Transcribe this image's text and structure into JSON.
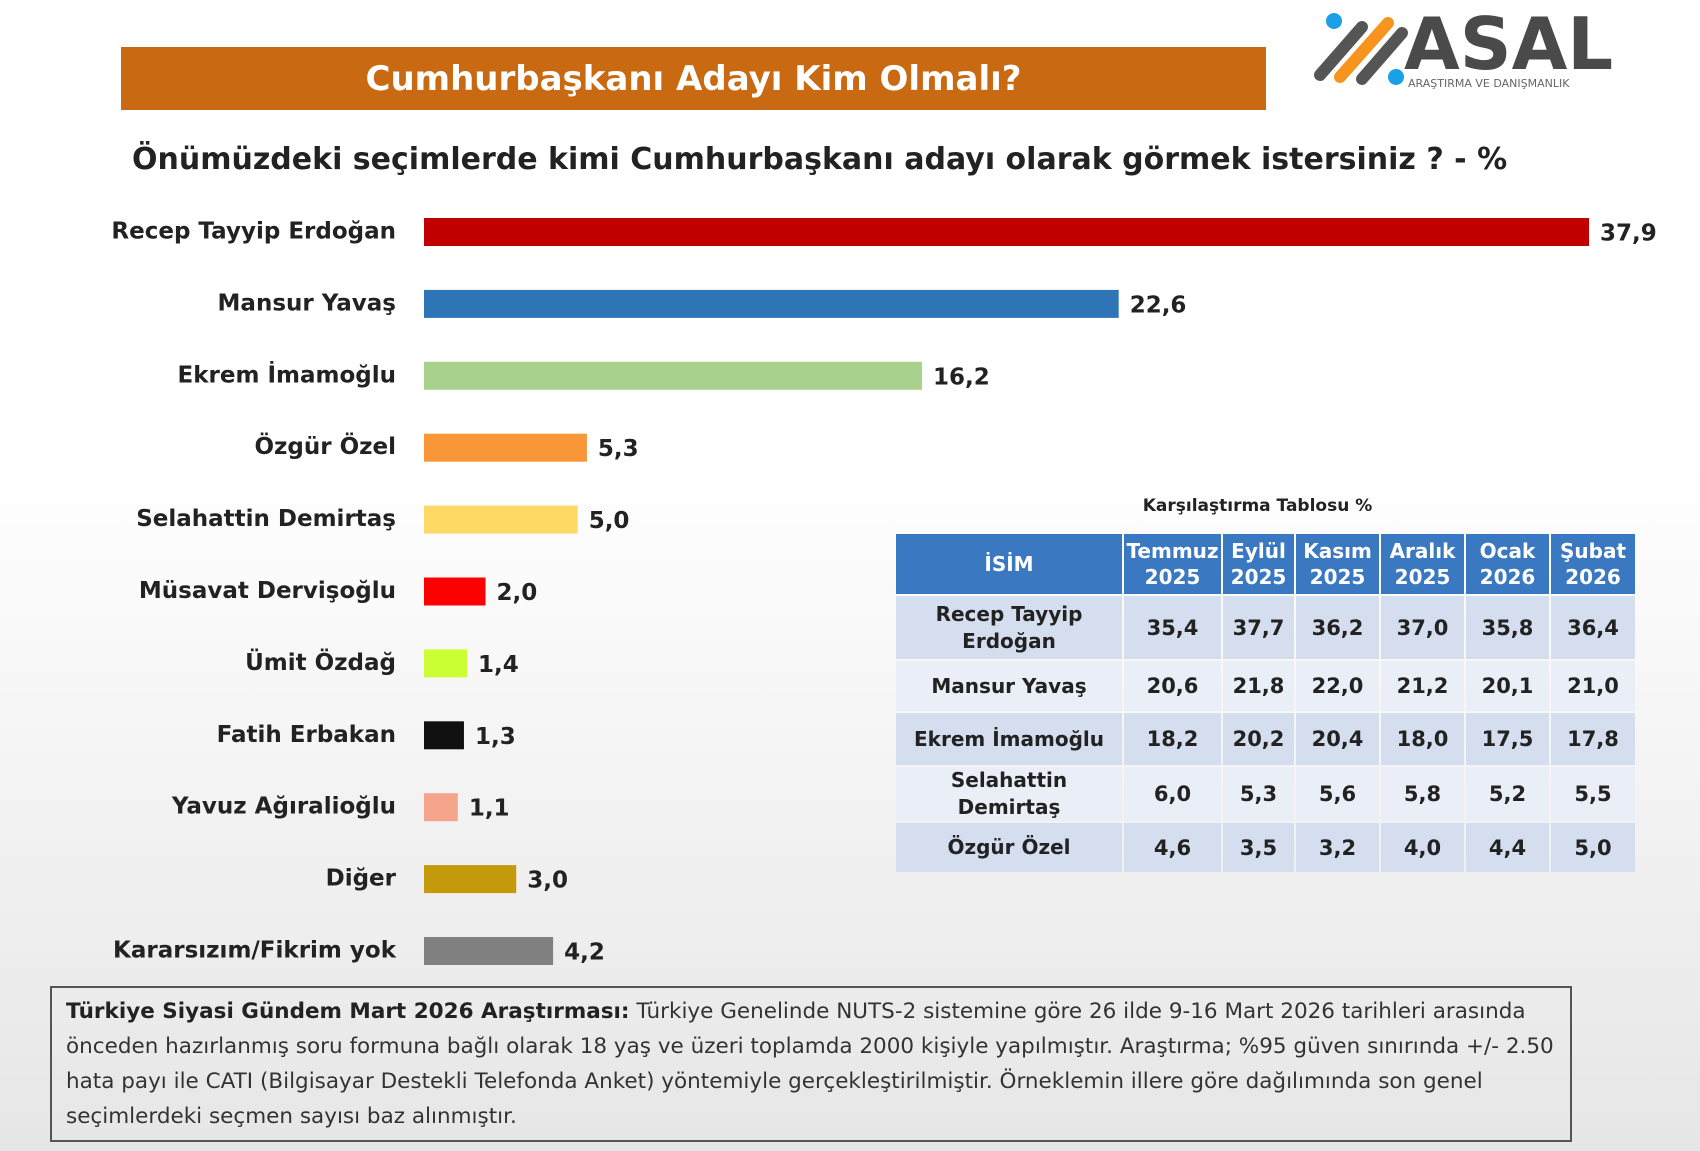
{
  "header": {
    "title": "Cumhurbaşkanı Adayı Kim Olmalı?",
    "logo": "ASAL",
    "logo_tagline": "ARAŞTIRMA VE DANIŞMANLIK"
  },
  "chart_data": {
    "type": "barh",
    "title": "Önümüzdeki seçimlerde kimi Cumhurbaşkanı adayı olarak görmek istersiniz ? - %",
    "categories": [
      "Recep Tayyip Erdoğan",
      "Mansur Yavaş",
      "Ekrem İmamoğlu",
      "Özgür Özel",
      "Selahattin Demirtaş",
      "Müsavat Dervişoğlu",
      "Ümit Özdağ",
      "Fatih Erbakan",
      "Yavuz Ağıralioğlu",
      "Diğer",
      "Kararsızım/Fikrim yok"
    ],
    "values": [
      37.9,
      22.6,
      16.2,
      5.3,
      5.0,
      2.0,
      1.4,
      1.3,
      1.1,
      3.0,
      4.2
    ],
    "value_labels": [
      "37,9",
      "22,6",
      "16,2",
      "5,3",
      "5,0",
      "2,0",
      "1,4",
      "1,3",
      "1,1",
      "3,0",
      "4,2"
    ],
    "colors": [
      "#c00000",
      "#2e75b6",
      "#a9d18e",
      "#f99638",
      "#ffd966",
      "#ff0000",
      "#ccff33",
      "#111111",
      "#f4a58c",
      "#c49a0c",
      "#808080"
    ]
  },
  "table": {
    "caption": "Karşılaştırma Tablosu %",
    "columns": [
      [
        "İSİM"
      ],
      [
        "Temmuz",
        "2025"
      ],
      [
        "Eylül",
        "2025"
      ],
      [
        "Kasım",
        "2025"
      ],
      [
        "Aralık",
        "2025"
      ],
      [
        "Ocak",
        "2026"
      ],
      [
        "Şubat",
        "2026"
      ]
    ],
    "rows": [
      [
        "Recep Tayyip Erdoğan",
        "35,4",
        "37,7",
        "36,2",
        "37,0",
        "35,8",
        "36,4"
      ],
      [
        "Mansur Yavaş",
        "20,6",
        "21,8",
        "22,0",
        "21,2",
        "20,1",
        "21,0"
      ],
      [
        "Ekrem İmamoğlu",
        "18,2",
        "20,2",
        "20,4",
        "18,0",
        "17,5",
        "17,8"
      ],
      [
        "Selahattin Demirtaş",
        "6,0",
        "5,3",
        "5,6",
        "5,8",
        "5,2",
        "5,5"
      ],
      [
        "Özgür Özel",
        "4,6",
        "3,5",
        "3,2",
        "4,0",
        "4,4",
        "5,0"
      ]
    ]
  },
  "note": {
    "bold": "Türkiye Siyasi Gündem Mart 2026 Araştırması:",
    "text": "Türkiye Genelinde NUTS-2 sistemine göre 26 ilde 9-16 Mart 2026 tarihleri arasında önceden hazırlanmış soru formuna bağlı olarak 18 yaş ve üzeri toplamda 2000 kişiyle yapılmıştır. Araştırma; %95 güven sınırında +/- 2.50 hata payı ile CATI (Bilgisayar Destekli Telefonda Anket) yöntemiyle gerçekleştirilmiştir. Örneklemin illere göre dağılımında son genel seçimlerdeki seçmen sayısı baz alınmıştır."
  }
}
